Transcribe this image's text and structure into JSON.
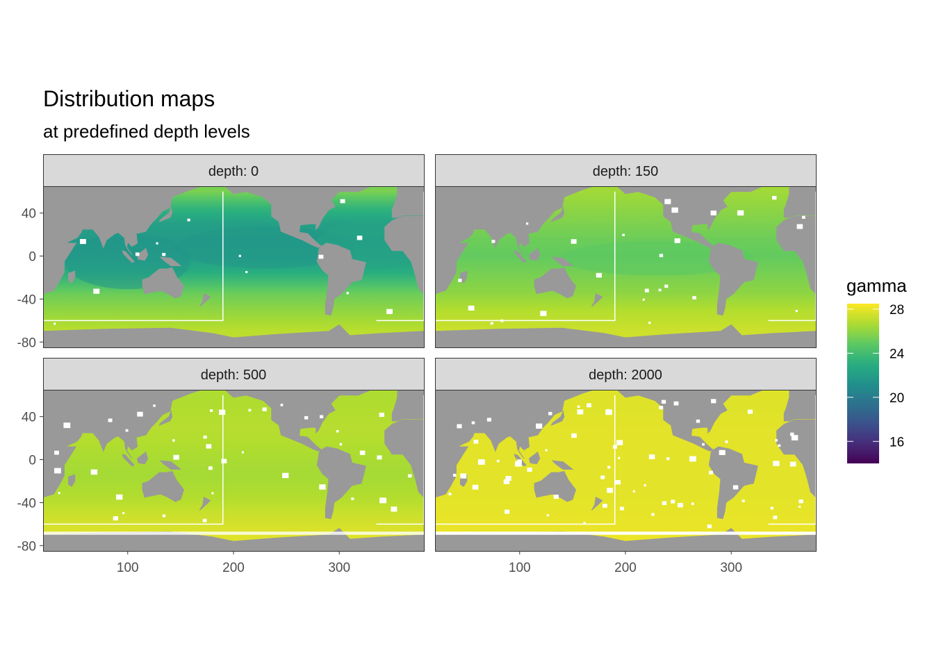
{
  "chart_data": {
    "type": "heatmap",
    "title": "Distribution maps",
    "subtitle": "at predefined depth levels",
    "facet_label_prefix": "depth: ",
    "facets": [
      {
        "depth": "0",
        "strip": "depth: 0",
        "base_gamma": 23.0,
        "zonal_gamma": [
          27.0,
          26.0,
          25.2,
          23.0,
          22.0,
          21.8,
          22.2,
          23.5,
          25.5
        ],
        "edge_gamma": 22.5
      },
      {
        "depth": "150",
        "strip": "depth: 150",
        "base_gamma": 25.6,
        "zonal_gamma": [
          27.4,
          26.8,
          26.0,
          25.4,
          25.0,
          25.2,
          25.6,
          26.0,
          26.4
        ],
        "edge_gamma": 25.2
      },
      {
        "depth": "500",
        "strip": "depth: 500",
        "base_gamma": 26.8,
        "zonal_gamma": [
          27.8,
          27.3,
          26.8,
          26.5,
          26.6,
          26.8,
          26.9,
          26.8,
          26.7
        ],
        "edge_gamma": 26.6
      },
      {
        "depth": "2000",
        "strip": "depth: 2000",
        "base_gamma": 27.9,
        "zonal_gamma": [
          28.1,
          28.0,
          27.9,
          27.9,
          27.9,
          27.9,
          27.9,
          27.8,
          27.8
        ],
        "edge_gamma": 27.9
      }
    ],
    "zonal_lat_nodes": [
      -70,
      -50,
      -35,
      -15,
      0,
      15,
      30,
      45,
      60
    ],
    "x": {
      "lim": [
        20,
        380
      ],
      "ticks": [
        100,
        200,
        300
      ],
      "tick_labels": [
        "100",
        "200",
        "300"
      ],
      "label": ""
    },
    "y": {
      "lim": [
        -85,
        65
      ],
      "ticks": [
        40,
        0,
        -40,
        -80
      ],
      "tick_labels": [
        "40",
        "0",
        "-40",
        "-80"
      ],
      "label": ""
    },
    "section_boxes": [
      {
        "lon": [
          20,
          190
        ],
        "lat": [
          -60,
          60
        ]
      },
      {
        "lon": [
          335,
          380
        ],
        "lat": [
          -60,
          60
        ]
      }
    ],
    "legend": {
      "title": "gamma",
      "position": "right",
      "range": [
        14,
        28.5
      ],
      "breaks": [
        28,
        24,
        20,
        16
      ],
      "labels": [
        "28",
        "24",
        "20",
        "16"
      ]
    },
    "colors": {
      "land": "#999999",
      "strip_fill": "#d9d9d9",
      "strip_border": "#333333",
      "panel_border": "#333333",
      "box_line": "#ffffff",
      "viridis": [
        "#440154",
        "#472d7b",
        "#3b528b",
        "#2c728e",
        "#21918c",
        "#28ae80",
        "#5ec962",
        "#addc30",
        "#fde725"
      ]
    }
  }
}
